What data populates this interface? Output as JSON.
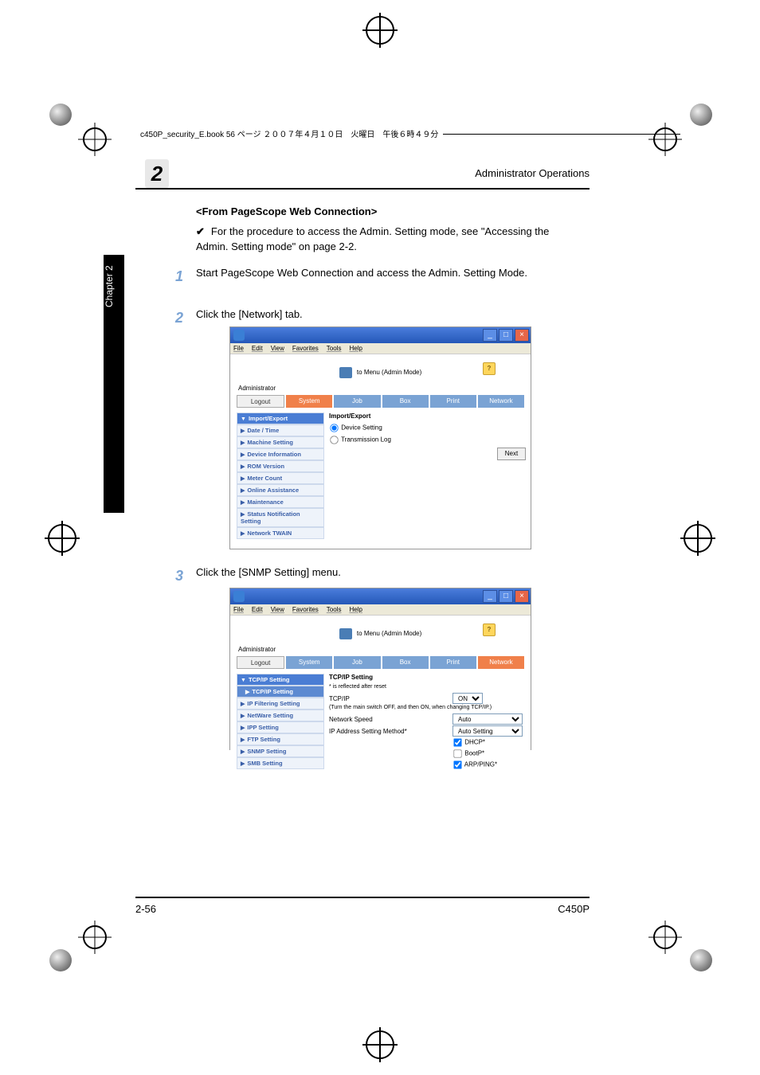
{
  "header": {
    "crop_text": "c450P_security_E.book  56 ページ  ２００７年４月１０日　火曜日　午後６時４９分"
  },
  "running_head": "Administrator Operations",
  "chapter_badge": "2",
  "side_chapter": "Chapter 2",
  "side_title": "Administrator Operations",
  "section_title": "<From PageScope Web Connection>",
  "check_text": "For the procedure to access the Admin. Setting mode, see \"Accessing the Admin. Setting mode\" on page 2-2.",
  "steps": {
    "s1_num": "1",
    "s1": "Start PageScope Web Connection and access the Admin. Setting Mode.",
    "s2_num": "2",
    "s2": "Click the [Network] tab.",
    "s3_num": "3",
    "s3": "Click the [SNMP Setting] menu."
  },
  "screenshot_common": {
    "menu": {
      "file": "File",
      "edit": "Edit",
      "view": "View",
      "favorites": "Favorites",
      "tools": "Tools",
      "help": "Help"
    },
    "mode_label": "to Menu (Admin Mode)",
    "help": "?",
    "admin": "Administrator",
    "logout": "Logout",
    "tabs": {
      "system": "System",
      "job": "Job",
      "box": "Box",
      "print": "Print",
      "network": "Network"
    },
    "window": {
      "min": "_",
      "max": "□",
      "close": "×"
    }
  },
  "screenshot1": {
    "side_items": [
      {
        "label": "Import/Export",
        "active": true
      },
      {
        "label": "Date / Time"
      },
      {
        "label": "Machine Setting"
      },
      {
        "label": "Device Information"
      },
      {
        "label": "ROM Version"
      },
      {
        "label": "Meter Count"
      },
      {
        "label": "Online Assistance"
      },
      {
        "label": "Maintenance"
      },
      {
        "label": "Status Notification Setting"
      },
      {
        "label": "Network TWAIN"
      }
    ],
    "panel_title": "Import/Export",
    "radio1": "Device Setting",
    "radio2": "Transmission Log",
    "next": "Next"
  },
  "screenshot2": {
    "side_items": [
      {
        "label": "TCP/IP Setting",
        "active": true
      },
      {
        "label": "TCP/IP Setting",
        "sub": true
      },
      {
        "label": "IP Filtering Setting"
      },
      {
        "label": "NetWare Setting"
      },
      {
        "label": "IPP Setting"
      },
      {
        "label": "FTP Setting"
      },
      {
        "label": "SNMP Setting"
      },
      {
        "label": "SMB Setting"
      }
    ],
    "panel_title": "TCP/IP Setting",
    "note": "* is reflected after reset",
    "tcpip_label": "TCP/IP",
    "tcpip_value": "ON",
    "tcpip_note": "(Turn the main switch OFF, and then ON, when changing TCP/IP.)",
    "netspeed_label": "Network Speed",
    "netspeed_value": "Auto",
    "ipmethod_label": "IP Address Setting Method*",
    "ipmethod_value": "Auto Setting",
    "dhcp": "DHCP*",
    "bootp": "BootP*",
    "arp": "ARP/PING*"
  },
  "footer": {
    "page": "2-56",
    "model": "C450P"
  },
  "colors": {
    "accent_blue": "#7aa3d4",
    "badge_bg": "#e8e8e8",
    "tab_active_bg": "#f0804a",
    "tab_bg": "#7aa3d4",
    "side_item_bg": "#eef3fa",
    "side_item_active_bg": "#4a7dd4",
    "titlebar_from": "#4a7ddc",
    "titlebar_to": "#2558b8",
    "win_close_bg": "#e76648",
    "help_bg": "#ffd65c"
  }
}
